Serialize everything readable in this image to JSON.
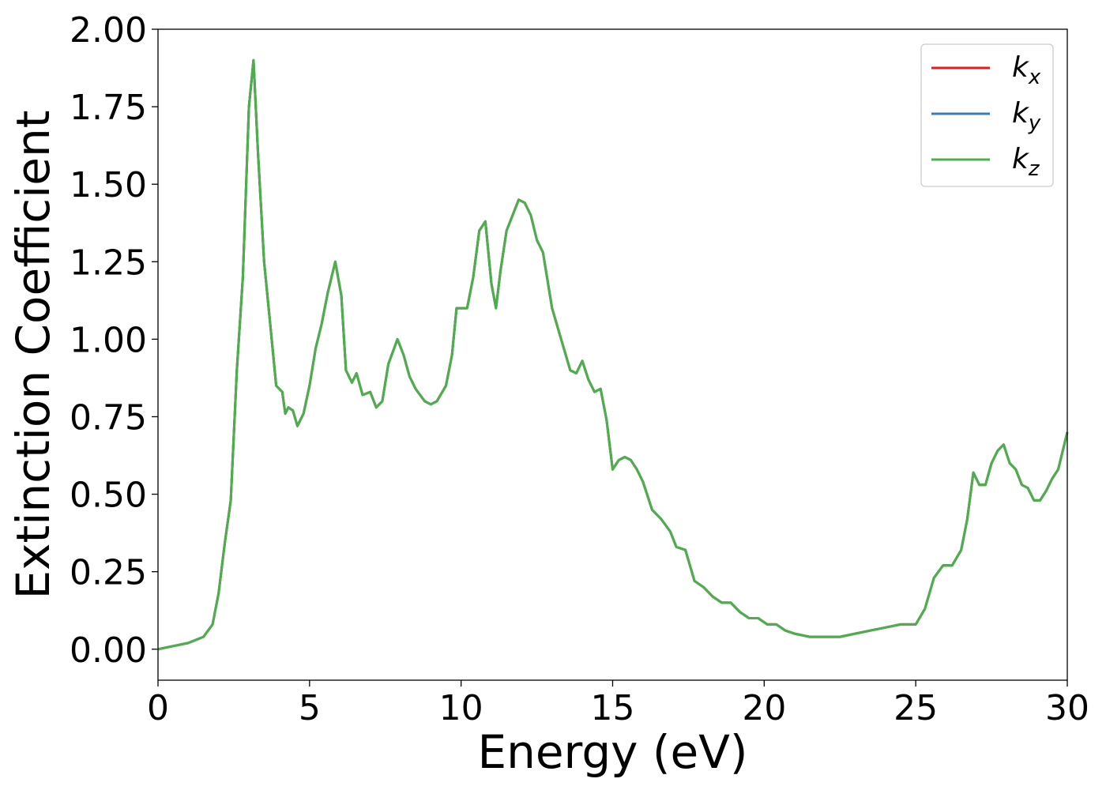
{
  "chart_data": {
    "type": "line",
    "title": "",
    "xlabel": "Energy (eV)",
    "ylabel": "Extinction Coefficient",
    "xlim": [
      0,
      30
    ],
    "ylim": [
      -0.1,
      2.0
    ],
    "xticks": [
      0,
      5,
      10,
      15,
      20,
      25,
      30
    ],
    "yticks": [
      0.0,
      0.25,
      0.5,
      0.75,
      1.0,
      1.25,
      1.5,
      1.75,
      2.0
    ],
    "xtick_labels": [
      "0",
      "5",
      "10",
      "15",
      "20",
      "25",
      "30"
    ],
    "ytick_labels": [
      "0.00",
      "0.25",
      "0.50",
      "0.75",
      "1.00",
      "1.25",
      "1.50",
      "1.75",
      "2.00"
    ],
    "grid": false,
    "legend_position": "top-right",
    "x": [
      0.0,
      0.5,
      1.0,
      1.5,
      1.8,
      2.0,
      2.2,
      2.4,
      2.6,
      2.8,
      3.0,
      3.15,
      3.3,
      3.5,
      3.7,
      3.9,
      4.1,
      4.2,
      4.3,
      4.45,
      4.6,
      4.8,
      5.0,
      5.2,
      5.4,
      5.6,
      5.85,
      6.05,
      6.2,
      6.4,
      6.55,
      6.75,
      7.0,
      7.2,
      7.4,
      7.6,
      7.9,
      8.1,
      8.3,
      8.5,
      8.8,
      9.0,
      9.2,
      9.5,
      9.7,
      9.85,
      10.0,
      10.2,
      10.4,
      10.6,
      10.8,
      11.0,
      11.15,
      11.3,
      11.5,
      11.7,
      11.9,
      12.1,
      12.3,
      12.5,
      12.7,
      13.0,
      13.3,
      13.6,
      13.8,
      14.0,
      14.2,
      14.4,
      14.6,
      14.8,
      15.0,
      15.2,
      15.4,
      15.6,
      15.8,
      16.0,
      16.3,
      16.6,
      16.9,
      17.1,
      17.4,
      17.7,
      18.0,
      18.3,
      18.6,
      18.9,
      19.2,
      19.5,
      19.8,
      20.1,
      20.4,
      20.7,
      21.0,
      21.5,
      22.0,
      22.5,
      23.0,
      23.5,
      24.0,
      24.5,
      25.0,
      25.3,
      25.6,
      25.9,
      26.2,
      26.5,
      26.7,
      26.9,
      27.1,
      27.3,
      27.5,
      27.7,
      27.9,
      28.1,
      28.3,
      28.5,
      28.7,
      28.9,
      29.1,
      29.3,
      29.5,
      29.7,
      30.0
    ],
    "series": [
      {
        "name": "kx",
        "color": "#e41a1c",
        "values": [
          0.0,
          0.01,
          0.02,
          0.04,
          0.08,
          0.18,
          0.34,
          0.48,
          0.9,
          1.2,
          1.75,
          1.9,
          1.6,
          1.25,
          1.05,
          0.85,
          0.83,
          0.76,
          0.78,
          0.77,
          0.72,
          0.76,
          0.85,
          0.97,
          1.05,
          1.15,
          1.25,
          1.14,
          0.9,
          0.86,
          0.89,
          0.82,
          0.83,
          0.78,
          0.8,
          0.92,
          1.0,
          0.95,
          0.88,
          0.84,
          0.8,
          0.79,
          0.8,
          0.85,
          0.95,
          1.1,
          1.1,
          1.1,
          1.2,
          1.35,
          1.38,
          1.18,
          1.1,
          1.22,
          1.35,
          1.4,
          1.45,
          1.44,
          1.4,
          1.32,
          1.28,
          1.1,
          1.0,
          0.9,
          0.89,
          0.93,
          0.87,
          0.83,
          0.84,
          0.74,
          0.58,
          0.61,
          0.62,
          0.61,
          0.58,
          0.54,
          0.45,
          0.42,
          0.38,
          0.33,
          0.32,
          0.22,
          0.2,
          0.17,
          0.15,
          0.15,
          0.12,
          0.1,
          0.1,
          0.08,
          0.08,
          0.06,
          0.05,
          0.04,
          0.04,
          0.04,
          0.05,
          0.06,
          0.07,
          0.08,
          0.08,
          0.13,
          0.23,
          0.27,
          0.27,
          0.32,
          0.42,
          0.57,
          0.53,
          0.53,
          0.6,
          0.64,
          0.66,
          0.6,
          0.58,
          0.53,
          0.52,
          0.48,
          0.48,
          0.51,
          0.55,
          0.58,
          0.7
        ]
      },
      {
        "name": "ky",
        "color": "#377eb8",
        "values": [
          0.0,
          0.01,
          0.02,
          0.04,
          0.08,
          0.18,
          0.34,
          0.48,
          0.9,
          1.2,
          1.75,
          1.9,
          1.6,
          1.25,
          1.05,
          0.85,
          0.83,
          0.76,
          0.78,
          0.77,
          0.72,
          0.76,
          0.85,
          0.97,
          1.05,
          1.15,
          1.25,
          1.14,
          0.9,
          0.86,
          0.89,
          0.82,
          0.83,
          0.78,
          0.8,
          0.92,
          1.0,
          0.95,
          0.88,
          0.84,
          0.8,
          0.79,
          0.8,
          0.85,
          0.95,
          1.1,
          1.1,
          1.1,
          1.2,
          1.35,
          1.38,
          1.18,
          1.1,
          1.22,
          1.35,
          1.4,
          1.45,
          1.44,
          1.4,
          1.32,
          1.28,
          1.1,
          1.0,
          0.9,
          0.89,
          0.93,
          0.87,
          0.83,
          0.84,
          0.74,
          0.58,
          0.61,
          0.62,
          0.61,
          0.58,
          0.54,
          0.45,
          0.42,
          0.38,
          0.33,
          0.32,
          0.22,
          0.2,
          0.17,
          0.15,
          0.15,
          0.12,
          0.1,
          0.1,
          0.08,
          0.08,
          0.06,
          0.05,
          0.04,
          0.04,
          0.04,
          0.05,
          0.06,
          0.07,
          0.08,
          0.08,
          0.13,
          0.23,
          0.27,
          0.27,
          0.32,
          0.42,
          0.57,
          0.53,
          0.53,
          0.6,
          0.64,
          0.66,
          0.6,
          0.58,
          0.53,
          0.52,
          0.48,
          0.48,
          0.51,
          0.55,
          0.58,
          0.7
        ]
      },
      {
        "name": "kz",
        "color": "#4daf4a",
        "values": [
          0.0,
          0.01,
          0.02,
          0.04,
          0.08,
          0.18,
          0.34,
          0.48,
          0.9,
          1.2,
          1.75,
          1.9,
          1.6,
          1.25,
          1.05,
          0.85,
          0.83,
          0.76,
          0.78,
          0.77,
          0.72,
          0.76,
          0.85,
          0.97,
          1.05,
          1.15,
          1.25,
          1.14,
          0.9,
          0.86,
          0.89,
          0.82,
          0.83,
          0.78,
          0.8,
          0.92,
          1.0,
          0.95,
          0.88,
          0.84,
          0.8,
          0.79,
          0.8,
          0.85,
          0.95,
          1.1,
          1.1,
          1.1,
          1.2,
          1.35,
          1.38,
          1.18,
          1.1,
          1.22,
          1.35,
          1.4,
          1.45,
          1.44,
          1.4,
          1.32,
          1.28,
          1.1,
          1.0,
          0.9,
          0.89,
          0.93,
          0.87,
          0.83,
          0.84,
          0.74,
          0.58,
          0.61,
          0.62,
          0.61,
          0.58,
          0.54,
          0.45,
          0.42,
          0.38,
          0.33,
          0.32,
          0.22,
          0.2,
          0.17,
          0.15,
          0.15,
          0.12,
          0.1,
          0.1,
          0.08,
          0.08,
          0.06,
          0.05,
          0.04,
          0.04,
          0.04,
          0.05,
          0.06,
          0.07,
          0.08,
          0.08,
          0.13,
          0.23,
          0.27,
          0.27,
          0.32,
          0.42,
          0.57,
          0.53,
          0.53,
          0.6,
          0.64,
          0.66,
          0.6,
          0.58,
          0.53,
          0.52,
          0.48,
          0.48,
          0.51,
          0.55,
          0.58,
          0.7
        ]
      }
    ],
    "legend": [
      {
        "base": "k",
        "sub": "x"
      },
      {
        "base": "k",
        "sub": "y"
      },
      {
        "base": "k",
        "sub": "z"
      }
    ]
  }
}
